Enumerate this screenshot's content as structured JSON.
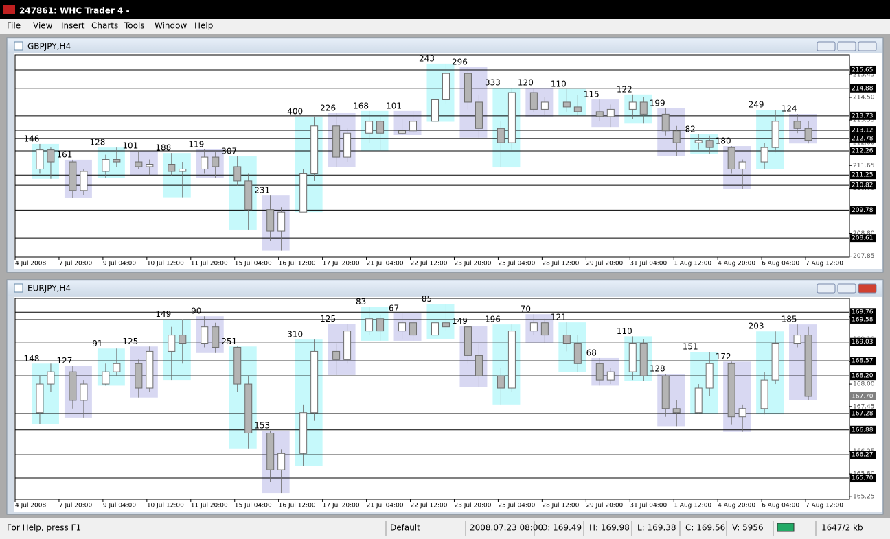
{
  "window": {
    "title": "247861: WHC Trader 4 -"
  },
  "menu": [
    "File",
    "View",
    "Insert",
    "Charts",
    "Tools",
    "Window",
    "Help"
  ],
  "time_axis": {
    "xlim": [
      0,
      152
    ],
    "xticks": [
      {
        "value": 0,
        "label": "4 Jul 2008"
      },
      {
        "value": 8,
        "label": "7 Jul 20:00"
      },
      {
        "value": 16,
        "label": "9 Jul 04:00"
      },
      {
        "value": 24,
        "label": "10 Jul 12:00"
      },
      {
        "value": 32,
        "label": "11 Jul 20:00"
      },
      {
        "value": 40,
        "label": "15 Jul 04:00"
      },
      {
        "value": 48,
        "label": "16 Jul 12:00"
      },
      {
        "value": 56,
        "label": "17 Jul 20:00"
      },
      {
        "value": 64,
        "label": "21 Jul 04:00"
      },
      {
        "value": 72,
        "label": "22 Jul 12:00"
      },
      {
        "value": 80,
        "label": "23 Jul 20:00"
      },
      {
        "value": 88,
        "label": "25 Jul 04:00"
      },
      {
        "value": 96,
        "label": "28 Jul 12:00"
      },
      {
        "value": 104,
        "label": "29 Jul 20:00"
      },
      {
        "value": 112,
        "label": "31 Jul 04:00"
      },
      {
        "value": 120,
        "label": "1 Aug 12:00"
      },
      {
        "value": 128,
        "label": "4 Aug 20:00"
      },
      {
        "value": 136,
        "label": "6 Aug 04:00"
      },
      {
        "value": 144,
        "label": "7 Aug 12:00"
      }
    ]
  },
  "candle_colors": {
    "up": "#ffffff",
    "down": "#b4b4b4",
    "outline": "#6e6e6e"
  },
  "box_colors": [
    "#c6f9fb",
    "#d8d8f2"
  ],
  "charts": [
    {
      "title": "GBPJPY,H4",
      "ylim": [
        207.81,
        216.28
      ],
      "yticks": [
        207.85,
        {
          "value": 208.8,
          "label": "208.80"
        },
        209.75,
        {
          "value": 210.7,
          "label": "210.70"
        },
        211.65,
        {
          "value": 212.6,
          "label": "212.60"
        },
        213.55,
        {
          "value": 214.5,
          "label": "214.50"
        },
        215.45
      ],
      "levels": [
        215.65,
        214.88,
        213.73,
        213.12,
        212.78,
        212.26,
        211.25,
        210.82,
        209.78,
        208.61
      ],
      "boxes": [
        [
          3,
          8,
          212.55,
          211.09,
          146
        ],
        [
          9,
          14,
          211.89,
          210.28,
          161
        ],
        [
          15,
          20,
          212.4,
          211.12,
          128
        ],
        [
          21,
          26,
          212.26,
          211.25,
          101
        ],
        [
          27,
          32,
          212.17,
          210.29,
          188
        ],
        [
          33,
          38,
          212.32,
          211.13,
          119
        ],
        [
          39,
          44,
          212.03,
          208.96,
          307
        ],
        [
          45,
          50,
          210.39,
          208.08,
          231
        ],
        [
          51,
          56,
          213.7,
          209.7,
          400
        ],
        [
          57,
          62,
          213.84,
          211.58,
          226
        ],
        [
          63,
          68,
          213.93,
          212.25,
          168
        ],
        [
          69,
          74,
          213.93,
          212.92,
          101
        ],
        [
          75,
          80,
          215.91,
          213.48,
          243
        ],
        [
          81,
          86,
          215.77,
          212.81,
          296
        ],
        [
          87,
          92,
          214.9,
          211.57,
          333
        ],
        [
          93,
          98,
          214.9,
          213.7,
          120
        ],
        [
          99,
          104,
          214.85,
          213.75,
          110
        ],
        [
          105,
          110,
          214.41,
          213.26,
          115
        ],
        [
          111,
          116,
          214.62,
          213.4,
          122
        ],
        [
          117,
          122,
          214.04,
          212.05,
          199
        ],
        [
          123,
          128,
          212.95,
          212.13,
          82
        ],
        [
          129,
          134,
          212.46,
          210.66,
          180
        ],
        [
          135,
          140,
          213.98,
          211.49,
          249
        ],
        [
          141,
          146,
          213.81,
          212.57,
          124
        ]
      ],
      "candles": [
        [
          4.5,
          211.5,
          212.55,
          211.3,
          212.3
        ],
        [
          6.5,
          212.3,
          212.4,
          211.09,
          211.8
        ],
        [
          10.5,
          211.8,
          211.89,
          210.28,
          210.6
        ],
        [
          12.5,
          210.6,
          211.5,
          210.4,
          211.4
        ],
        [
          16.5,
          211.4,
          212.1,
          211.12,
          211.9
        ],
        [
          18.5,
          211.9,
          212.4,
          211.6,
          211.8
        ],
        [
          22.5,
          211.8,
          212.26,
          211.5,
          211.6
        ],
        [
          24.5,
          211.6,
          211.9,
          211.25,
          211.7
        ],
        [
          28.5,
          211.7,
          212.17,
          211.2,
          211.4
        ],
        [
          30.5,
          211.4,
          211.8,
          210.29,
          211.5
        ],
        [
          34.5,
          211.5,
          212.32,
          211.3,
          212
        ],
        [
          36.5,
          212,
          212.2,
          211.13,
          211.6
        ],
        [
          40.5,
          211.6,
          212.03,
          210.8,
          211
        ],
        [
          42.5,
          211,
          211.3,
          208.96,
          209.8
        ],
        [
          46.5,
          209.8,
          210.39,
          208.5,
          208.9
        ],
        [
          48.5,
          208.9,
          209.9,
          208.08,
          209.7
        ],
        [
          52.5,
          209.7,
          211.5,
          209.7,
          211.3
        ],
        [
          54.5,
          211.3,
          213.7,
          211,
          213.3
        ],
        [
          58.5,
          213.3,
          213.84,
          211.58,
          212
        ],
        [
          60.5,
          212,
          213.2,
          211.8,
          213
        ],
        [
          64.5,
          213,
          213.93,
          212.6,
          213.5
        ],
        [
          66.5,
          213.5,
          213.7,
          212.25,
          213
        ],
        [
          70.5,
          213,
          213.6,
          212.92,
          213.1
        ],
        [
          72.5,
          213.1,
          213.93,
          213,
          213.5
        ],
        [
          76.5,
          213.5,
          214.6,
          213.48,
          214.4
        ],
        [
          78.5,
          214.4,
          215.91,
          214.2,
          215.5
        ],
        [
          82.5,
          215.5,
          215.77,
          214,
          214.3
        ],
        [
          84.5,
          214.3,
          214.6,
          212.81,
          213.2
        ],
        [
          88.5,
          213.2,
          213.5,
          211.57,
          212.6
        ],
        [
          90.5,
          212.6,
          214.9,
          212.3,
          214.7
        ],
        [
          94.5,
          214.7,
          214.9,
          213.9,
          214
        ],
        [
          96.5,
          214,
          214.5,
          213.7,
          214.3
        ],
        [
          100.5,
          214.3,
          214.85,
          213.9,
          214.1
        ],
        [
          102.5,
          214.1,
          214.6,
          213.75,
          213.9
        ],
        [
          106.5,
          213.9,
          214.41,
          213.5,
          213.7
        ],
        [
          108.5,
          213.7,
          214.2,
          213.26,
          214
        ],
        [
          112.5,
          214,
          214.62,
          213.6,
          214.3
        ],
        [
          114.5,
          214.3,
          214.5,
          213.4,
          213.8
        ],
        [
          118.5,
          213.8,
          214.04,
          212.9,
          213.1
        ],
        [
          120.5,
          213.1,
          213.3,
          212.05,
          212.6
        ],
        [
          124.5,
          212.6,
          212.95,
          212.3,
          212.7
        ],
        [
          126.5,
          212.7,
          212.9,
          212.13,
          212.4
        ],
        [
          130.5,
          212.4,
          212.46,
          211.3,
          211.5
        ],
        [
          132.5,
          211.5,
          211.9,
          210.66,
          211.8
        ],
        [
          136.5,
          211.8,
          212.6,
          211.49,
          212.4
        ],
        [
          138.5,
          212.4,
          213.98,
          212.2,
          213.5
        ],
        [
          142.5,
          213.5,
          213.81,
          213,
          213.2
        ],
        [
          144.5,
          213.2,
          213.5,
          212.57,
          212.7
        ]
      ]
    },
    {
      "title": "EURJPY,H4",
      "ylim": [
        165.18,
        170.1
      ],
      "yticks": [
        165.25,
        {
          "value": 165.8,
          "label": "165.80"
        },
        166.35,
        {
          "value": 166.9,
          "label": "166.90"
        },
        167.45,
        {
          "value": 168,
          "label": "168.00"
        },
        168.55,
        {
          "value": 169.1,
          "label": "169.10"
        },
        169.65
      ],
      "levels": [
        169.76,
        169.58,
        169.03,
        168.57,
        {
          "value": 168.2,
          "label": "168.20"
        },
        167.28,
        166.88,
        166.27,
        {
          "value": 165.7,
          "label": "165.70"
        }
      ],
      "current_price": {
        "value": 167.7,
        "label": "167.70"
      },
      "boxes": [
        [
          3,
          8,
          168.5,
          167.02,
          148
        ],
        [
          9,
          14,
          168.45,
          167.18,
          127
        ],
        [
          15,
          20,
          168.87,
          167.96,
          91
        ],
        [
          21,
          26,
          168.92,
          167.67,
          125
        ],
        [
          27,
          32,
          169.59,
          168.1,
          149
        ],
        [
          33,
          38,
          169.66,
          168.76,
          90
        ],
        [
          39,
          44,
          168.92,
          166.41,
          251
        ],
        [
          45,
          50,
          166.86,
          165.33,
          153
        ],
        [
          51,
          56,
          169.09,
          165.99,
          310
        ],
        [
          57,
          62,
          169.47,
          168.22,
          125
        ],
        [
          63,
          68,
          169.89,
          169.06,
          83
        ],
        [
          69,
          74,
          169.73,
          169.06,
          67
        ],
        [
          75,
          80,
          169.96,
          169.11,
          85
        ],
        [
          81,
          86,
          169.42,
          167.93,
          149
        ],
        [
          87,
          92,
          169.46,
          167.5,
          196
        ],
        [
          93,
          98,
          169.71,
          169.01,
          70
        ],
        [
          99,
          104,
          169.51,
          168.3,
          121
        ],
        [
          105,
          110,
          168.64,
          167.96,
          68
        ],
        [
          111,
          116,
          169.17,
          168.07,
          110
        ],
        [
          117,
          122,
          168.25,
          166.97,
          128
        ],
        [
          123,
          128,
          168.79,
          167.28,
          151
        ],
        [
          129,
          134,
          168.55,
          166.83,
          172
        ],
        [
          135,
          140,
          169.29,
          167.26,
          203
        ],
        [
          141,
          146,
          169.46,
          167.61,
          185
        ]
      ],
      "candles": [
        [
          4.5,
          167.3,
          168.2,
          167.02,
          168
        ],
        [
          6.5,
          168,
          168.5,
          167.8,
          168.3
        ],
        [
          10.5,
          168.3,
          168.45,
          167.4,
          167.6
        ],
        [
          12.5,
          167.6,
          168.1,
          167.18,
          168
        ],
        [
          16.5,
          168,
          168.5,
          167.96,
          168.3
        ],
        [
          18.5,
          168.3,
          168.87,
          168.2,
          168.5
        ],
        [
          22.5,
          168.5,
          168.6,
          167.67,
          167.9
        ],
        [
          24.5,
          167.9,
          168.92,
          167.8,
          168.8
        ],
        [
          28.5,
          168.8,
          169.4,
          168.1,
          169.2
        ],
        [
          30.5,
          169.2,
          169.59,
          168.5,
          169
        ],
        [
          34.5,
          169,
          169.66,
          168.9,
          169.4
        ],
        [
          36.5,
          169.4,
          169.5,
          168.76,
          168.9
        ],
        [
          40.5,
          168.9,
          168.92,
          167.8,
          168
        ],
        [
          42.5,
          168,
          168.2,
          166.41,
          166.8
        ],
        [
          46.5,
          166.8,
          166.86,
          165.6,
          165.9
        ],
        [
          48.5,
          165.9,
          166.4,
          165.33,
          166.3
        ],
        [
          52.5,
          166.3,
          167.5,
          165.99,
          167.3
        ],
        [
          54.5,
          167.3,
          169.09,
          167.1,
          168.8
        ],
        [
          58.5,
          168.8,
          169,
          168.22,
          168.6
        ],
        [
          60.5,
          168.6,
          169.47,
          168.5,
          169.3
        ],
        [
          64.5,
          169.3,
          169.89,
          169.2,
          169.6
        ],
        [
          66.5,
          169.6,
          169.7,
          169.06,
          169.3
        ],
        [
          70.5,
          169.3,
          169.73,
          169.1,
          169.5
        ],
        [
          72.5,
          169.5,
          169.6,
          169.06,
          169.2
        ],
        [
          76.5,
          169.2,
          169.6,
          169.11,
          169.5
        ],
        [
          78.5,
          169.5,
          169.96,
          169.3,
          169.4
        ],
        [
          82.5,
          169.4,
          169.42,
          168.5,
          168.7
        ],
        [
          84.5,
          168.7,
          169,
          167.93,
          168.2
        ],
        [
          88.5,
          168.2,
          168.4,
          167.5,
          167.9
        ],
        [
          90.5,
          167.9,
          169.46,
          167.8,
          169.3
        ],
        [
          94.5,
          169.3,
          169.71,
          169.2,
          169.5
        ],
        [
          96.5,
          169.5,
          169.6,
          169.01,
          169.2
        ],
        [
          100.5,
          169.2,
          169.51,
          168.8,
          169
        ],
        [
          102.5,
          169,
          169.2,
          168.3,
          168.5
        ],
        [
          106.5,
          168.5,
          168.64,
          167.96,
          168.1
        ],
        [
          108.5,
          168.1,
          168.4,
          168,
          168.3
        ],
        [
          112.5,
          168.3,
          169.17,
          168.1,
          169
        ],
        [
          114.5,
          169,
          169.1,
          168.07,
          168.2
        ],
        [
          118.5,
          168.2,
          168.25,
          167.2,
          167.4
        ],
        [
          120.5,
          167.4,
          167.6,
          166.97,
          167.3
        ],
        [
          124.5,
          167.3,
          168,
          167.28,
          167.9
        ],
        [
          126.5,
          167.9,
          168.79,
          167.7,
          168.5
        ],
        [
          130.5,
          168.5,
          168.55,
          167,
          167.2
        ],
        [
          132.5,
          167.2,
          167.5,
          166.83,
          167.4
        ],
        [
          136.5,
          167.4,
          168.3,
          167.26,
          168.1
        ],
        [
          138.5,
          168.1,
          169.29,
          168,
          169
        ],
        [
          142.5,
          169,
          169.46,
          168.9,
          169.2
        ],
        [
          144.5,
          169.2,
          169.4,
          167.61,
          167.7
        ]
      ]
    }
  ],
  "status": [
    "For Help, press F1",
    "Default",
    "2008.07.23 08:00",
    "O: 169.49",
    "H: 169.98",
    "L: 169.38",
    "C: 169.56",
    "V: 5956",
    "1647/2 kb"
  ]
}
